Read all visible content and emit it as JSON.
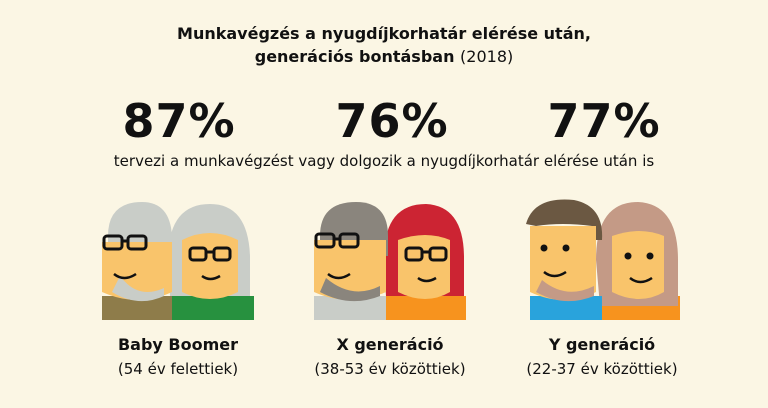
{
  "title": {
    "line1": "Munkavégzés a nyugdíjkorhatár elérése után,",
    "line2_bold": "generációs bontásban",
    "year": "(2018)"
  },
  "subtitle": "tervezi a munkavégzést vagy dolgozik a nyugdíjkorhatár elérése után is",
  "generations": [
    {
      "percent": "87%",
      "name": "Baby Boomer",
      "age": "(54 év felettiek)"
    },
    {
      "percent": "76%",
      "name": "X generáció",
      "age": "(38-53 év közöttiek)"
    },
    {
      "percent": "77%",
      "name": "Y generáció",
      "age": "(22-37 év közöttiek)"
    }
  ],
  "colors": {
    "background": "#fbf6e4",
    "skin": "#f9c46b",
    "gray_hair": "#c9cdc8",
    "dark_gray_hair": "#8a857d",
    "red_hair": "#cc2433",
    "brown_hair": "#6b5842",
    "light_brown_hair": "#c49a86",
    "green_shirt": "#27913f",
    "olive_shirt": "#8e7c4a",
    "blue_shirt": "#29a3dc",
    "orange_shirt": "#f7931e"
  }
}
